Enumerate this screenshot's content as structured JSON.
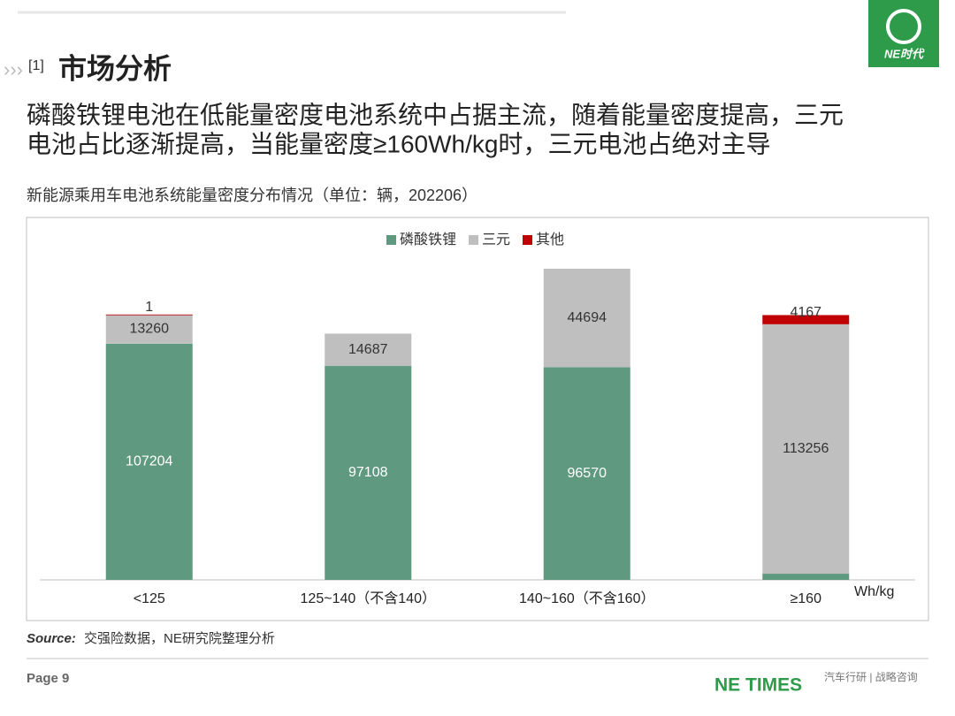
{
  "header": {
    "section": "[1]",
    "title": "市场分析",
    "logo": "NE时代"
  },
  "headline": [
    "磷酸铁锂电池在低能量密度电池系统中占据主流，随着能量密度提高，三元",
    "电池占比逐渐提高，当能量密度≥160Wh/kg时，三元电池占绝对主导"
  ],
  "chart_data": {
    "type": "stacked-bar",
    "title": "新能源乘用车电池系统能量密度分布情况（单位：辆，202206）",
    "x_unit": "Wh/kg",
    "categories": [
      "<125",
      "125~140（不含140）",
      "140~160（不含160）",
      "≥160"
    ],
    "series": [
      {
        "name": "磷酸铁锂",
        "color": "#5f9a80",
        "values": [
          107204,
          97108,
          96570,
          2794
        ]
      },
      {
        "name": "三元",
        "color": "#bfbfbf",
        "values": [
          13260,
          14687,
          44694,
          113256
        ]
      },
      {
        "name": "其他",
        "color": "#c00000",
        "values": [
          1,
          null,
          null,
          4167
        ]
      }
    ]
  },
  "source": {
    "label": "Source:",
    "text": "交强险数据，NE研究院整理分析"
  },
  "footer": {
    "page": "Page 9",
    "brand": "NE TIMES",
    "tagline": "汽车行研 | 战略咨询"
  }
}
